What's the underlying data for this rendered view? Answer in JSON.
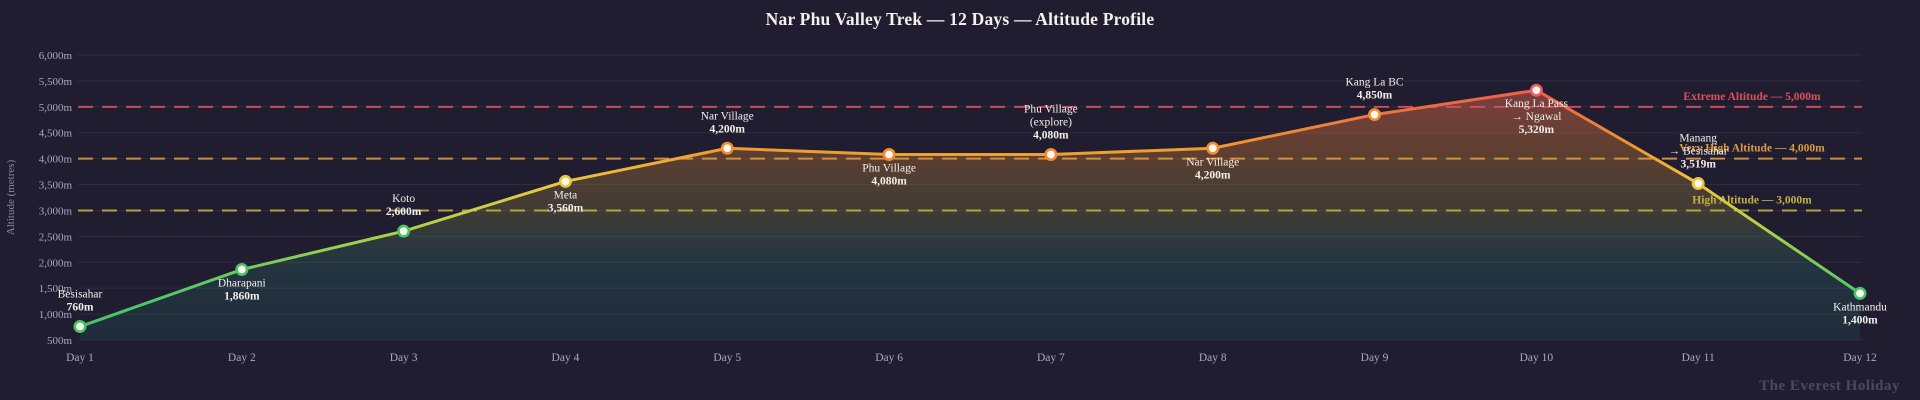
{
  "chart_data": {
    "type": "line",
    "title": "Nar Phu Valley Trek — 12 Days — Altitude Profile",
    "background": "#201d31",
    "grid": true,
    "legend_position": "none",
    "y_axis": {
      "label": "Altitude (metres)",
      "min": 500,
      "max": 6000,
      "tick_step": 500,
      "tick_labels": [
        "500m",
        "1,000m",
        "1,500m",
        "2,000m",
        "2,500m",
        "3,000m",
        "3,500m",
        "4,000m",
        "4,500m",
        "5,000m",
        "5,500m",
        "6,000m"
      ]
    },
    "x_axis": {
      "tick_labels": [
        "Day 1",
        "Day 2",
        "Day 3",
        "Day 4",
        "Day 5",
        "Day 6",
        "Day 7",
        "Day 8",
        "Day 9",
        "Day 10",
        "Day 11",
        "Day 12"
      ]
    },
    "points": [
      {
        "x": "Day 1",
        "label_lines": [
          "Besisahar"
        ],
        "altitude": 760,
        "altitude_label": "760m",
        "label_position": "above"
      },
      {
        "x": "Day 2",
        "label_lines": [
          "Dharapani"
        ],
        "altitude": 1860,
        "altitude_label": "1,860m",
        "label_position": "below"
      },
      {
        "x": "Day 3",
        "label_lines": [
          "Koto"
        ],
        "altitude": 2600,
        "altitude_label": "2,600m",
        "label_position": "above"
      },
      {
        "x": "Day 4",
        "label_lines": [
          "Meta"
        ],
        "altitude": 3560,
        "altitude_label": "3,560m",
        "label_position": "below"
      },
      {
        "x": "Day 5",
        "label_lines": [
          "Nar Village"
        ],
        "altitude": 4200,
        "altitude_label": "4,200m",
        "label_position": "above"
      },
      {
        "x": "Day 6",
        "label_lines": [
          "Phu Village"
        ],
        "altitude": 4080,
        "altitude_label": "4,080m",
        "label_position": "below"
      },
      {
        "x": "Day 7",
        "label_lines": [
          "Phu Village",
          "(explore)"
        ],
        "altitude": 4080,
        "altitude_label": "4,080m",
        "label_position": "above"
      },
      {
        "x": "Day 8",
        "label_lines": [
          "Nar Village"
        ],
        "altitude": 4200,
        "altitude_label": "4,200m",
        "label_position": "below"
      },
      {
        "x": "Day 9",
        "label_lines": [
          "Kang La BC"
        ],
        "altitude": 4850,
        "altitude_label": "4,850m",
        "label_position": "above"
      },
      {
        "x": "Day 10",
        "label_lines": [
          "Kang La Pass",
          "→ Ngawal"
        ],
        "altitude": 5320,
        "altitude_label": "5,320m",
        "label_position": "below"
      },
      {
        "x": "Day 11",
        "label_lines": [
          "Manang",
          "→ Besisahar"
        ],
        "altitude": 3519,
        "altitude_label": "3,519m",
        "label_position": "above"
      },
      {
        "x": "Day 12",
        "label_lines": [
          "Kathmandu"
        ],
        "altitude": 1400,
        "altitude_label": "1,400m",
        "label_position": "below"
      }
    ],
    "thresholds": [
      {
        "label": "Extreme Altitude — 5,000m",
        "value": 5000,
        "color": "#d9505e"
      },
      {
        "label": "Very High Altitude — 4,000m",
        "value": 4000,
        "color": "#dd9a3f"
      },
      {
        "label": "High Altitude — 3,000m",
        "value": 3000,
        "color": "#c0b140"
      }
    ],
    "altitude_colors": {
      "extreme": "#ee5a68",
      "very_high": "#f08c33",
      "high": "#e9c53e",
      "low": "#44c666"
    },
    "text_colors": {
      "point_label": "#f3f0ea",
      "axis_tick": "#aba6c3",
      "axis_title": "#8d88a6"
    }
  },
  "footer": {
    "brand": "The Everest Holiday"
  }
}
